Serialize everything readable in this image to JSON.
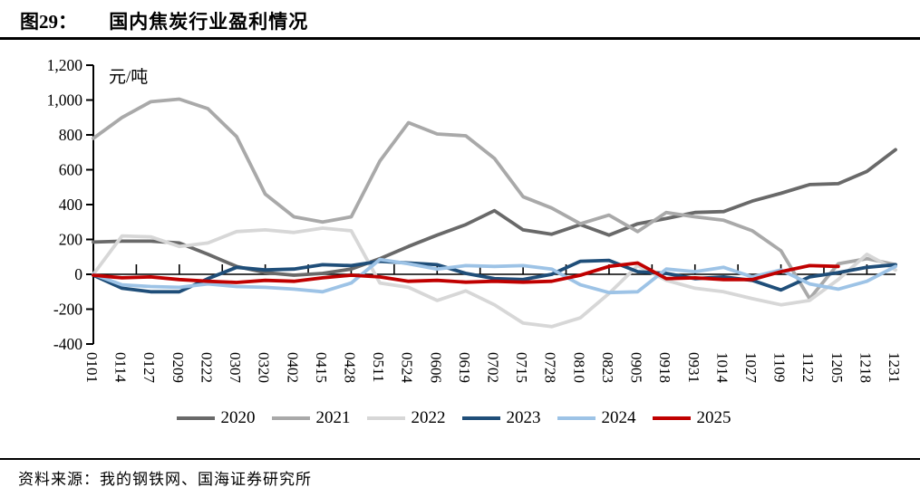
{
  "header": {
    "figure_label": "图29：",
    "title": "国内焦炭行业盈利情况"
  },
  "chart_data": {
    "type": "line",
    "unit_label": "元/吨",
    "ylim": [
      -400,
      1200
    ],
    "ytick_interval": 200,
    "ytick_labels": [
      "1,200",
      "1,000",
      "800",
      "600",
      "400",
      "200",
      "0",
      "-200",
      "-400"
    ],
    "grid": false,
    "legend_position": "bottom",
    "categories": [
      "0101",
      "0114",
      "0127",
      "0209",
      "0222",
      "0307",
      "0320",
      "0402",
      "0415",
      "0428",
      "0511",
      "0524",
      "0606",
      "0619",
      "0702",
      "0715",
      "0728",
      "0810",
      "0823",
      "0905",
      "0918",
      "0931",
      "1014",
      "1027",
      "1109",
      "1122",
      "1205",
      "1218",
      "1231"
    ],
    "series": [
      {
        "name": "2020",
        "color": "#696969",
        "values": [
          185,
          190,
          190,
          180,
          115,
          45,
          10,
          -5,
          5,
          30,
          90,
          160,
          225,
          285,
          365,
          255,
          230,
          285,
          225,
          290,
          320,
          355,
          360,
          420,
          465,
          515,
          520,
          590,
          715
        ]
      },
      {
        "name": "2021",
        "color": "#a9a9a9",
        "values": [
          780,
          900,
          990,
          1005,
          950,
          790,
          460,
          330,
          300,
          330,
          650,
          870,
          805,
          795,
          665,
          445,
          380,
          290,
          340,
          245,
          355,
          330,
          310,
          250,
          135,
          -140,
          60,
          90,
          55
        ]
      },
      {
        "name": "2022",
        "color": "#d7d7d7",
        "values": [
          0,
          220,
          215,
          160,
          180,
          245,
          255,
          240,
          265,
          250,
          -50,
          -75,
          -150,
          -95,
          -175,
          -280,
          -300,
          -250,
          -110,
          50,
          -35,
          -80,
          -100,
          -140,
          -175,
          -150,
          -30,
          115,
          25
        ]
      },
      {
        "name": "2023",
        "color": "#1f4e79",
        "values": [
          -5,
          -80,
          -100,
          -100,
          -25,
          40,
          25,
          30,
          55,
          50,
          75,
          65,
          55,
          5,
          -25,
          -30,
          0,
          75,
          80,
          15,
          5,
          -25,
          -15,
          -35,
          -90,
          -15,
          10,
          40,
          55
        ]
      },
      {
        "name": "2024",
        "color": "#9dc3e6",
        "values": [
          0,
          -60,
          -70,
          -75,
          -55,
          -70,
          -75,
          -85,
          -100,
          -50,
          85,
          60,
          30,
          50,
          45,
          50,
          30,
          -60,
          -105,
          -100,
          30,
          15,
          40,
          -15,
          25,
          -55,
          -85,
          -40,
          45
        ]
      },
      {
        "name": "2025",
        "color": "#c00000",
        "values": [
          -5,
          -20,
          -15,
          -30,
          -40,
          -47,
          -35,
          -40,
          -20,
          -5,
          -15,
          -40,
          -35,
          -45,
          -40,
          -45,
          -40,
          -5,
          45,
          65,
          -25,
          -20,
          -30,
          -30,
          15,
          50,
          45
        ]
      }
    ]
  },
  "footer": {
    "source": "资料来源：我的钢铁网、国海证券研究所"
  }
}
